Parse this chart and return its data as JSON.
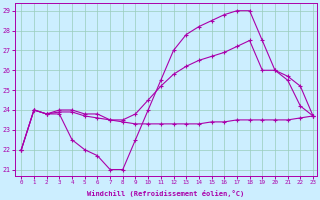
{
  "xlabel": "Windchill (Refroidissement éolien,°C)",
  "bg_color": "#cceeff",
  "grid_color": "#99ccbb",
  "line_color": "#aa00aa",
  "xlim": [
    -0.5,
    23.3
  ],
  "ylim": [
    20.7,
    29.4
  ],
  "yticks": [
    21,
    22,
    23,
    24,
    25,
    26,
    27,
    28,
    29
  ],
  "xticks": [
    0,
    1,
    2,
    3,
    4,
    5,
    6,
    7,
    8,
    9,
    10,
    11,
    12,
    13,
    14,
    15,
    16,
    17,
    18,
    19,
    20,
    21,
    22,
    23
  ],
  "line_low_x": [
    0,
    1,
    2,
    3,
    4,
    5,
    6,
    7,
    8,
    9,
    10,
    11,
    12,
    13,
    14,
    15,
    16,
    17,
    18,
    19,
    20,
    21,
    22,
    23
  ],
  "line_low_y": [
    22,
    24,
    23.8,
    23.9,
    23.9,
    23.7,
    23.6,
    23.5,
    23.4,
    23.3,
    23.3,
    23.3,
    23.3,
    23.3,
    23.3,
    23.4,
    23.4,
    23.5,
    23.5,
    23.5,
    23.5,
    23.5,
    23.6,
    23.7
  ],
  "line_mid_x": [
    0,
    1,
    2,
    3,
    4,
    5,
    6,
    7,
    8,
    9,
    10,
    11,
    12,
    13,
    14,
    15,
    16,
    17,
    18,
    19,
    20,
    21,
    22,
    23
  ],
  "line_mid_y": [
    22,
    24,
    23.8,
    24.0,
    24.0,
    23.8,
    23.8,
    23.5,
    23.5,
    23.8,
    24.5,
    25.2,
    25.8,
    26.2,
    26.5,
    26.7,
    26.9,
    27.2,
    27.5,
    26.0,
    26.0,
    25.7,
    25.2,
    23.7
  ],
  "line_high_x": [
    0,
    1,
    2,
    3,
    4,
    5,
    6,
    7,
    8,
    9,
    10,
    11,
    12,
    13,
    14,
    15,
    16,
    17,
    18,
    19,
    20,
    21,
    22,
    23
  ],
  "line_high_y": [
    22,
    24,
    23.8,
    23.8,
    22.5,
    22.0,
    21.7,
    21.0,
    21.0,
    22.5,
    24.0,
    25.5,
    27.0,
    27.8,
    28.2,
    28.5,
    28.8,
    29.0,
    29.0,
    27.5,
    26.0,
    25.5,
    24.2,
    23.7
  ]
}
